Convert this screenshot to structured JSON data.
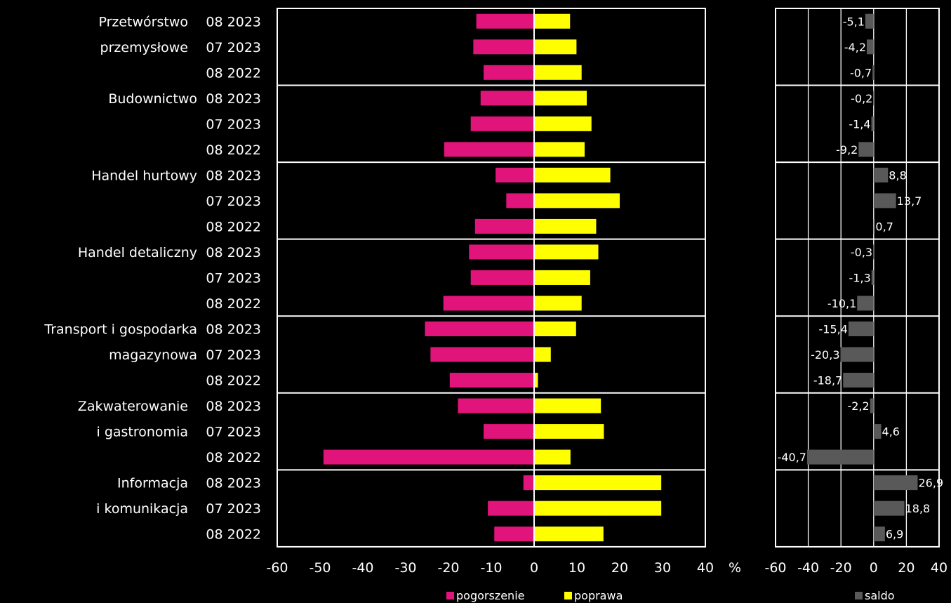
{
  "chart_data": [
    {
      "type": "bar",
      "orientation": "horizontal",
      "groups": [
        {
          "name_lines": [
            "Przetwórstwo",
            "przemysłowe"
          ],
          "periods": [
            "08 2023",
            "07 2023",
            "08 2022"
          ]
        },
        {
          "name_lines": [
            "Budownictwo"
          ],
          "periods": [
            "08 2023",
            "07 2023",
            "08 2022"
          ]
        },
        {
          "name_lines": [
            "Handel hurtowy"
          ],
          "periods": [
            "08 2023",
            "07 2023",
            "08 2022"
          ]
        },
        {
          "name_lines": [
            "Handel detaliczny"
          ],
          "periods": [
            "08 2023",
            "07 2023",
            "08 2022"
          ]
        },
        {
          "name_lines": [
            "Transport i gospodarka",
            "magazynowa"
          ],
          "periods": [
            "08 2023",
            "07 2023",
            "08 2022"
          ]
        },
        {
          "name_lines": [
            "Zakwaterowanie",
            "i gastronomia"
          ],
          "periods": [
            "08 2023",
            "07 2023",
            "08 2022"
          ]
        },
        {
          "name_lines": [
            "Informacja",
            "i komunikacja"
          ],
          "periods": [
            "08 2023",
            "07 2023",
            "08 2022"
          ]
        }
      ],
      "series": [
        {
          "name": "pogorszenie",
          "color": "#e0147a",
          "values": [
            -13.5,
            -14.2,
            -11.8,
            -12.5,
            -14.8,
            -21.0,
            -9.0,
            -6.5,
            -13.8,
            -15.2,
            -14.8,
            -21.2,
            -25.5,
            -24.2,
            -19.7,
            -17.8,
            -11.8,
            -49.2,
            -2.5,
            -10.8,
            -9.3
          ]
        },
        {
          "name": "poprawa",
          "color": "#ffff00",
          "values": [
            8.4,
            9.9,
            11.1,
            12.3,
            13.4,
            11.8,
            17.8,
            20.0,
            14.5,
            15.0,
            13.1,
            11.1,
            9.8,
            3.9,
            0.9,
            15.6,
            16.3,
            8.5,
            29.7,
            29.7,
            16.2
          ]
        }
      ],
      "xlim": [
        -60,
        40
      ],
      "xticks": [
        "-60",
        "-50",
        "-40",
        "-30",
        "-20",
        "-10",
        "0",
        "10",
        "20",
        "30",
        "40"
      ],
      "unit_label": "%"
    },
    {
      "type": "bar",
      "orientation": "horizontal",
      "series": [
        {
          "name": "saldo",
          "color": "#595959",
          "values": [
            -5.1,
            -4.2,
            -0.7,
            -0.2,
            -1.4,
            -9.2,
            8.8,
            13.7,
            0.7,
            -0.3,
            -1.3,
            -10.1,
            -15.4,
            -20.3,
            -18.7,
            -2.2,
            4.6,
            -40.7,
            26.9,
            18.8,
            6.9
          ],
          "labels": [
            "-5,1",
            "-4,2",
            "-0,7",
            "-0,2",
            "-1,4",
            "-9,2",
            "8,8",
            "13,7",
            "0,7",
            "-0,3",
            "-1,3",
            "-10,1",
            "-15,4",
            "-20,3",
            "-18,7",
            "-2,2",
            "4,6",
            "-40,7",
            "26,9",
            "18,8",
            "6,9"
          ]
        }
      ],
      "xlim": [
        -60,
        40
      ],
      "xticks": [
        "-60",
        "-40",
        "-20",
        "0",
        "20",
        "40"
      ]
    }
  ]
}
